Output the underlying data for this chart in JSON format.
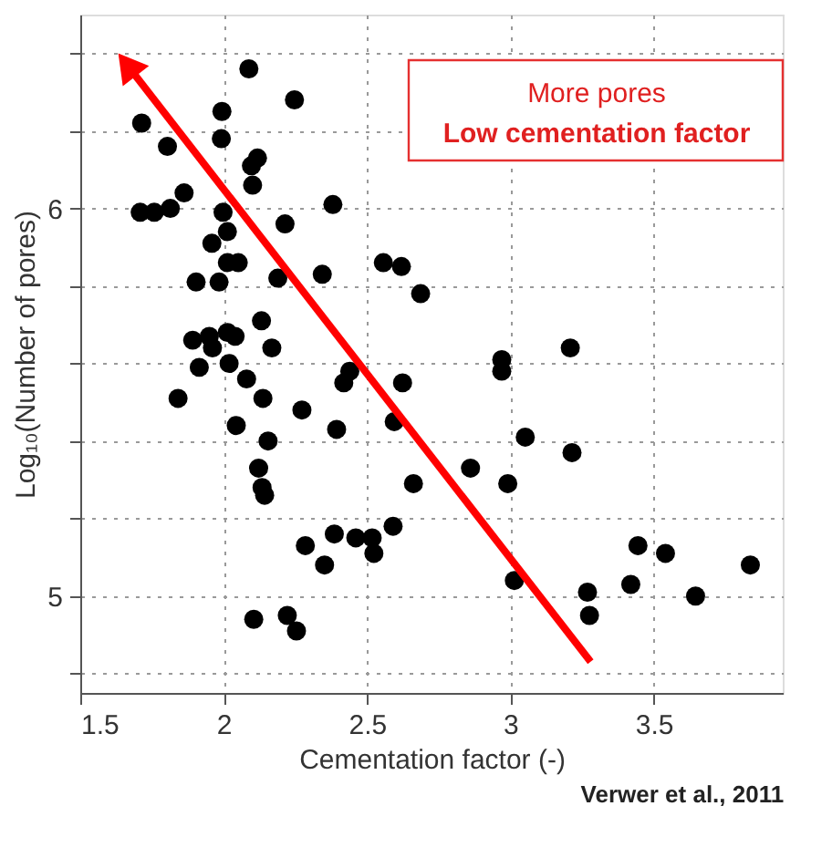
{
  "chart_data": {
    "type": "scatter",
    "xlabel": "Cementation factor (-)",
    "ylabel": "Log₁₀(Number of pores)",
    "xlim": [
      1.5,
      3.95
    ],
    "ylim": [
      4.75,
      6.5
    ],
    "xticks": [
      1.5,
      2,
      2.5,
      3,
      3.5
    ],
    "yticks": [
      {
        "value": 4.8,
        "label": null
      },
      5,
      {
        "value": 5.2,
        "label": null
      },
      {
        "value": 5.4,
        "label": null
      },
      {
        "value": 5.6,
        "label": null
      },
      {
        "value": 5.8,
        "label": null
      },
      6,
      {
        "value": 6.2,
        "label": null
      },
      {
        "value": 6.4,
        "label": null
      }
    ],
    "grid": true,
    "marker": "circle",
    "series": [
      {
        "color": "#000000",
        "x": [
          2.088,
          2.247,
          1.714,
          1.994,
          1.992,
          1.804,
          2.118,
          2.097,
          2.101,
          1.862,
          1.709,
          1.758,
          1.814,
          1.998,
          2.381,
          2.013,
          2.214,
          1.959,
          2.013,
          2.051,
          2.557,
          2.62,
          1.904,
          1.984,
          2.189,
          2.344,
          2.687,
          2.132,
          1.892,
          1.95,
          1.961,
          2.013,
          2.04,
          2.168,
          3.209,
          1.915,
          2.019,
          2.97,
          2.97,
          2.44,
          2.419,
          2.624,
          2.08,
          1.841,
          2.137,
          2.273,
          2.044,
          2.394,
          2.595,
          2.155,
          3.052,
          3.215,
          2.122,
          2.861,
          2.134,
          2.143,
          2.662,
          2.991,
          2.591,
          2.386,
          2.461,
          2.518,
          2.285,
          2.524,
          2.352,
          3.445,
          3.541,
          3.837,
          3.014,
          3.269,
          3.42,
          3.646,
          3.276,
          2.105,
          2.222,
          2.254
        ],
        "values": [
          6.36,
          6.28,
          6.22,
          6.25,
          6.18,
          6.16,
          6.13,
          6.11,
          6.06,
          6.04,
          5.99,
          5.99,
          6.0,
          5.99,
          6.01,
          5.94,
          5.96,
          5.91,
          5.86,
          5.86,
          5.86,
          5.85,
          5.81,
          5.81,
          5.82,
          5.83,
          5.78,
          5.71,
          5.66,
          5.67,
          5.64,
          5.68,
          5.67,
          5.64,
          5.64,
          5.59,
          5.6,
          5.61,
          5.58,
          5.58,
          5.55,
          5.55,
          5.56,
          5.51,
          5.51,
          5.48,
          5.44,
          5.43,
          5.45,
          5.4,
          5.41,
          5.37,
          5.33,
          5.33,
          5.28,
          5.26,
          5.29,
          5.29,
          5.18,
          5.16,
          5.15,
          5.15,
          5.13,
          5.11,
          5.08,
          5.13,
          5.11,
          5.08,
          5.04,
          5.01,
          5.03,
          5.0,
          4.95,
          4.94,
          4.95,
          4.91
        ]
      }
    ],
    "annotations": [
      "More pores",
      "Low cementation factor",
      "Verwer et al., 2011"
    ]
  }
}
